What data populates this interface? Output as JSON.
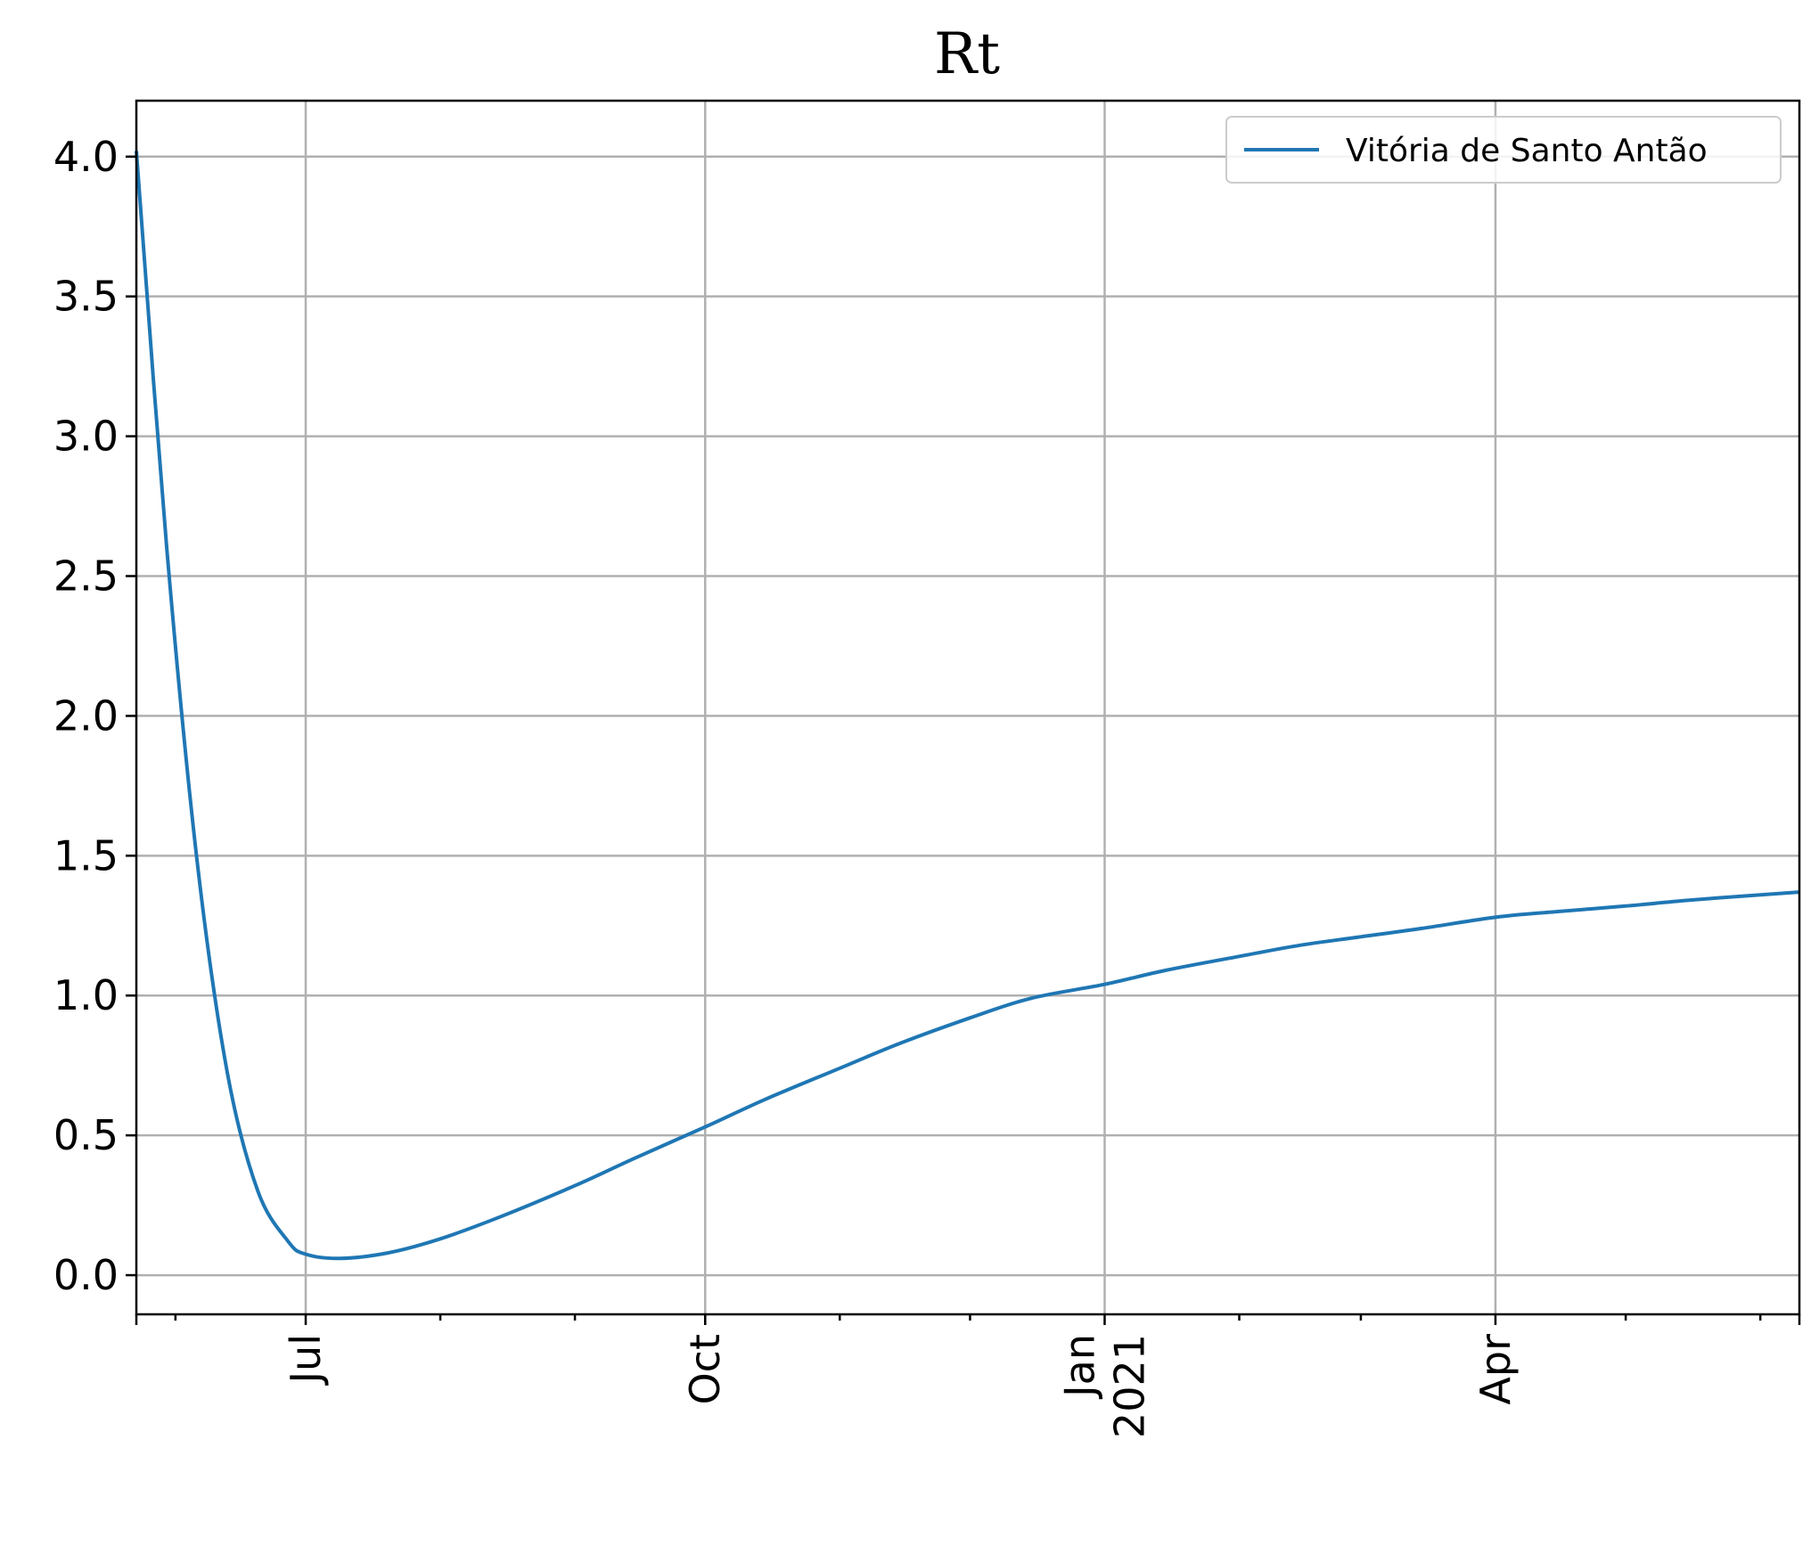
{
  "chart_data": {
    "type": "line",
    "title": "Rt",
    "xlabel": "",
    "ylabel": "",
    "x_range": [
      "2020-05-23",
      "2021-06-10"
    ],
    "ylim": [
      -0.14,
      4.2
    ],
    "yticks": [
      0.0,
      0.5,
      1.0,
      1.5,
      2.0,
      2.5,
      3.0,
      3.5,
      4.0
    ],
    "ytick_labels": [
      "0.0",
      "0.5",
      "1.0",
      "1.5",
      "2.0",
      "2.5",
      "3.0",
      "3.5",
      "4.0"
    ],
    "xticks": [
      {
        "date": "2020-07-01",
        "label": "Jul"
      },
      {
        "date": "2020-10-01",
        "label": "Oct"
      },
      {
        "date": "2021-01-01",
        "label": "Jan\n2021"
      },
      {
        "date": "2021-04-01",
        "label": "Apr"
      }
    ],
    "minor_xticks": [
      "2020-06-01",
      "2020-08-01",
      "2020-09-01",
      "2020-11-01",
      "2020-12-01",
      "2021-02-01",
      "2021-03-01",
      "2021-05-01",
      "2021-06-01"
    ],
    "grid": true,
    "legend_position": "top-right",
    "series": [
      {
        "name": "Vitória de Santo Antão",
        "color": "#1f77b4",
        "x": [
          "2020-05-23",
          "2020-05-30",
          "2020-06-06",
          "2020-06-13",
          "2020-06-20",
          "2020-06-27",
          "2020-07-01",
          "2020-07-09",
          "2020-07-20",
          "2020-08-01",
          "2020-08-15",
          "2020-09-01",
          "2020-09-15",
          "2020-10-01",
          "2020-10-15",
          "2020-11-01",
          "2020-11-15",
          "2020-12-01",
          "2020-12-15",
          "2021-01-01",
          "2021-01-15",
          "2021-02-01",
          "2021-02-15",
          "2021-03-01",
          "2021-03-15",
          "2021-04-01",
          "2021-04-15",
          "2021-05-01",
          "2021-05-15",
          "2021-06-01",
          "2021-06-10"
        ],
        "values": [
          4.02,
          2.6,
          1.48,
          0.72,
          0.3,
          0.12,
          0.075,
          0.06,
          0.08,
          0.13,
          0.21,
          0.32,
          0.42,
          0.53,
          0.63,
          0.74,
          0.83,
          0.92,
          0.99,
          1.04,
          1.09,
          1.14,
          1.18,
          1.21,
          1.24,
          1.28,
          1.3,
          1.32,
          1.34,
          1.36,
          1.37
        ]
      }
    ]
  }
}
